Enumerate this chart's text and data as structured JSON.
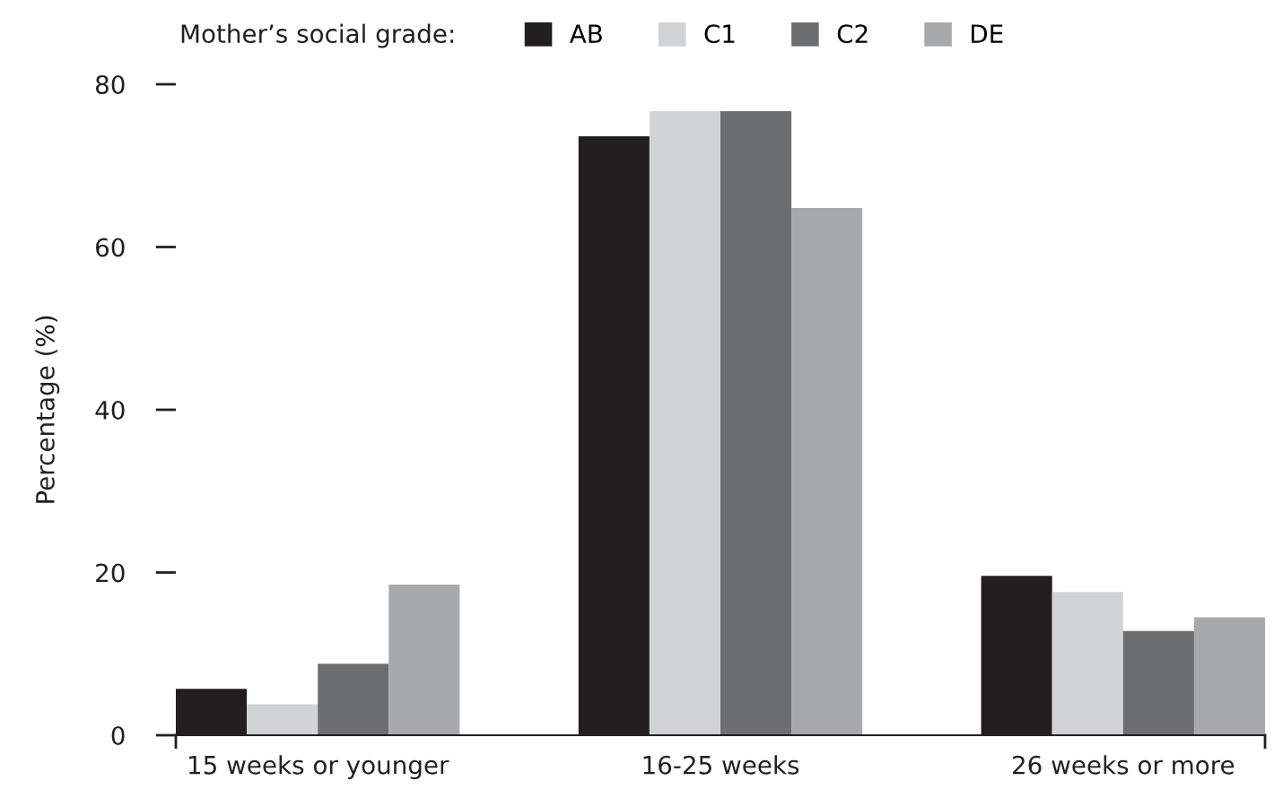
{
  "chart_data": {
    "type": "bar",
    "ylabel": "Percentage (%)",
    "legend_title": "Mother’s social grade:",
    "categories": [
      "15 weeks or younger",
      "16-25 weeks",
      "26 weeks or more"
    ],
    "series": [
      {
        "name": "AB",
        "color": "#231f20",
        "values": [
          5.7,
          73.6,
          19.6
        ]
      },
      {
        "name": "C1",
        "color": "#d1d3d4",
        "values": [
          3.8,
          76.7,
          17.6
        ]
      },
      {
        "name": "C2",
        "color": "#6d6e70",
        "values": [
          8.8,
          76.7,
          12.8
        ]
      },
      {
        "name": "DE",
        "color": "#a7a9ac",
        "values": [
          18.5,
          64.8,
          14.5
        ]
      }
    ],
    "ylim": [
      0,
      80
    ],
    "yticks": [
      0,
      20,
      40,
      60,
      80
    ],
    "grid": false,
    "legend": "top"
  }
}
